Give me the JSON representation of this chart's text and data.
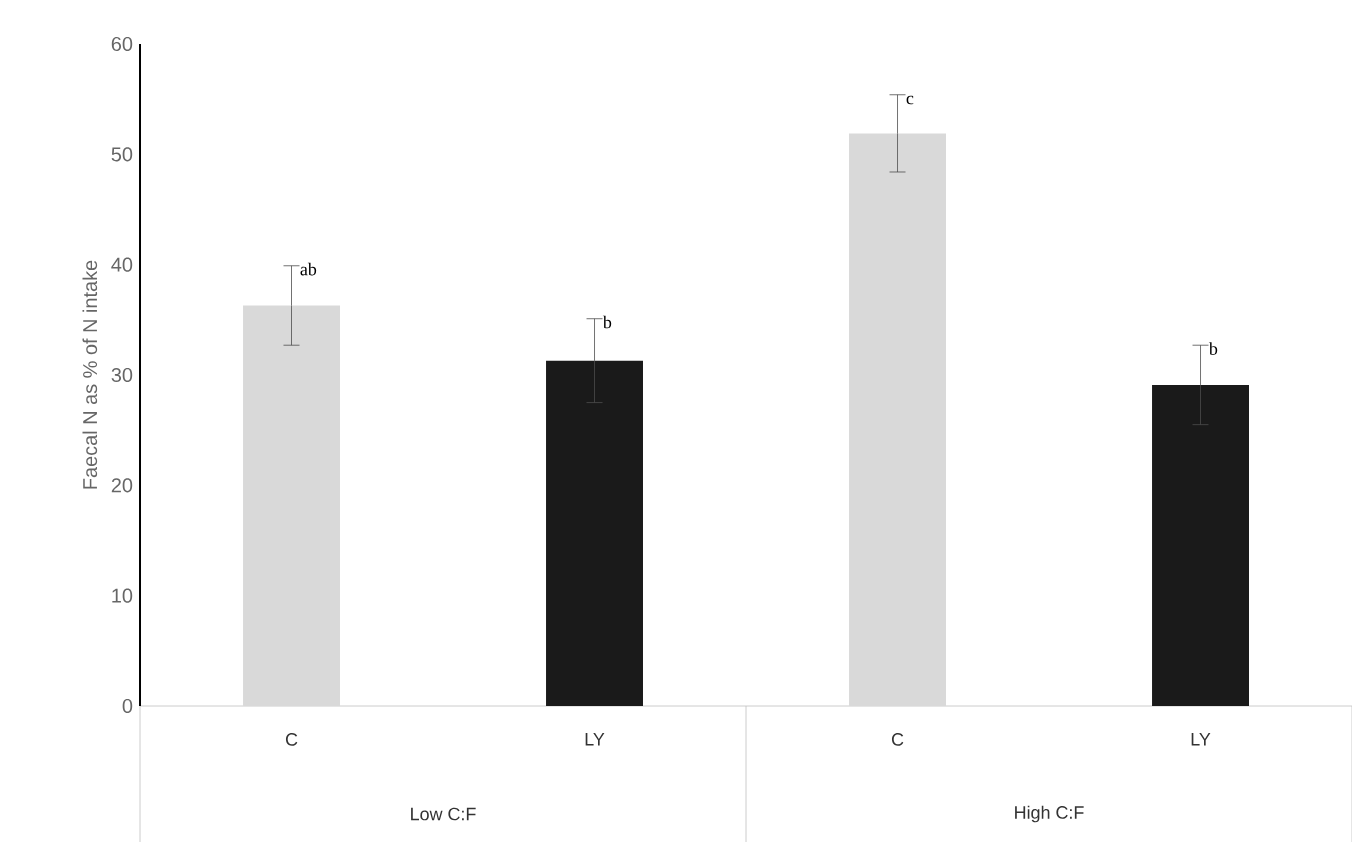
{
  "chart_data": {
    "type": "bar",
    "ylabel": "Faecal N as % of N intake",
    "categories": [
      "C",
      "LY",
      "C",
      "LY"
    ],
    "values": [
      36.3,
      31.3,
      51.9,
      29.1
    ],
    "errors": [
      3.6,
      3.8,
      3.5,
      3.6
    ],
    "colors": [
      "#d9d9d9",
      "#1a1a1a",
      "#d9d9d9",
      "#1a1a1a"
    ],
    "ylim": [
      0,
      60
    ],
    "yticks": [
      0,
      10,
      20,
      30,
      40,
      50,
      60
    ],
    "grid": false,
    "annotations": [
      "ab",
      "b",
      "c",
      "b",
      "Low C:F",
      "High C:F"
    ]
  }
}
